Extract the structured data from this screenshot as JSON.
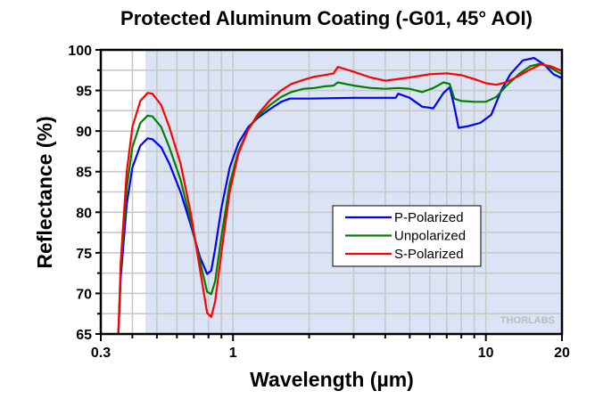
{
  "chart_data": {
    "type": "line",
    "title": "Protected Aluminum Coating (-G01, 45° AOI)",
    "xlabel": "Wavelength (µm)",
    "ylabel": "Reflectance (%)",
    "xscale": "log",
    "xlim": [
      0.3,
      20
    ],
    "ylim": [
      65,
      100
    ],
    "xticks": [
      {
        "value": 0.3,
        "label": "0.3"
      },
      {
        "value": 1,
        "label": "1"
      },
      {
        "value": 10,
        "label": "10"
      },
      {
        "value": 20,
        "label": "20"
      }
    ],
    "yticks": [
      65,
      70,
      75,
      80,
      85,
      90,
      95,
      100
    ],
    "grid": true,
    "shaded_region": {
      "x": [
        0.45,
        20
      ],
      "color": "#dbe4f5"
    },
    "legend_position": "center-right",
    "watermark": "THORLABS",
    "series": [
      {
        "name": "P-Polarized",
        "color": "#0000ff",
        "x": [
          0.352,
          0.36,
          0.38,
          0.4,
          0.43,
          0.46,
          0.48,
          0.52,
          0.56,
          0.62,
          0.68,
          0.74,
          0.79,
          0.82,
          0.85,
          0.9,
          0.97,
          1.05,
          1.15,
          1.25,
          1.4,
          1.55,
          1.68,
          2.0,
          3.0,
          4.4,
          4.5,
          5.0,
          5.6,
          6.2,
          6.8,
          7.2,
          7.5,
          7.8,
          8.5,
          9.5,
          10.5,
          11.5,
          12.5,
          14.0,
          15.5,
          17.0,
          18.5,
          20.0
        ],
        "y": [
          65.0,
          72.0,
          81.0,
          85.5,
          88.2,
          89.1,
          89.0,
          88.0,
          86.0,
          82.5,
          78.5,
          74.5,
          72.4,
          72.8,
          75.5,
          80.5,
          85.5,
          88.5,
          90.5,
          91.6,
          92.7,
          93.6,
          94.0,
          94.0,
          94.1,
          94.1,
          94.6,
          94.1,
          93.0,
          92.8,
          94.7,
          95.4,
          93.0,
          90.4,
          90.6,
          91.0,
          92.0,
          95.0,
          97.0,
          98.7,
          99.0,
          98.2,
          97.0,
          96.5
        ]
      },
      {
        "name": "Unpolarized",
        "color": "#008000",
        "x": [
          0.352,
          0.36,
          0.38,
          0.4,
          0.43,
          0.46,
          0.48,
          0.52,
          0.56,
          0.62,
          0.68,
          0.74,
          0.79,
          0.82,
          0.85,
          0.9,
          0.97,
          1.05,
          1.15,
          1.25,
          1.4,
          1.55,
          1.7,
          1.9,
          2.1,
          2.3,
          2.5,
          2.6,
          3.0,
          3.5,
          4.0,
          4.5,
          5.0,
          5.6,
          6.2,
          6.8,
          7.2,
          7.5,
          8.0,
          9.0,
          10.0,
          11.0,
          12.0,
          13.5,
          15.0,
          16.5,
          18.0,
          20.0
        ],
        "y": [
          65.0,
          73.0,
          83.0,
          88.0,
          91.0,
          91.9,
          91.8,
          90.5,
          88.0,
          84.0,
          79.0,
          74.0,
          70.2,
          69.9,
          71.5,
          77.0,
          83.5,
          87.5,
          90.2,
          91.8,
          93.2,
          94.2,
          94.8,
          95.2,
          95.3,
          95.5,
          95.6,
          96.0,
          95.6,
          95.3,
          95.2,
          95.3,
          95.2,
          94.8,
          95.3,
          96.0,
          95.8,
          94.0,
          93.7,
          93.6,
          93.6,
          94.2,
          95.5,
          97.0,
          98.0,
          98.3,
          97.8,
          97.0
        ]
      },
      {
        "name": "S-Polarized",
        "color": "#ff0000",
        "x": [
          0.352,
          0.36,
          0.38,
          0.4,
          0.43,
          0.46,
          0.48,
          0.52,
          0.56,
          0.62,
          0.68,
          0.74,
          0.79,
          0.82,
          0.85,
          0.9,
          0.97,
          1.05,
          1.15,
          1.25,
          1.4,
          1.55,
          1.7,
          1.9,
          2.1,
          2.3,
          2.5,
          2.6,
          3.0,
          3.5,
          4.0,
          5.0,
          6.0,
          7.0,
          8.0,
          9.0,
          10.0,
          11.0,
          12.0,
          13.5,
          15.0,
          16.5,
          18.0,
          20.0
        ],
        "y": [
          65.0,
          74.0,
          85.0,
          90.5,
          93.7,
          94.7,
          94.6,
          93.2,
          90.5,
          86.0,
          80.0,
          73.0,
          67.6,
          67.1,
          69.0,
          75.0,
          82.5,
          87.2,
          90.2,
          92.0,
          93.8,
          95.0,
          95.8,
          96.3,
          96.7,
          96.9,
          97.1,
          97.9,
          97.3,
          96.6,
          96.2,
          96.6,
          97.0,
          97.1,
          96.9,
          96.4,
          95.9,
          95.7,
          96.0,
          96.8,
          97.6,
          98.2,
          98.0,
          97.4
        ]
      }
    ]
  }
}
